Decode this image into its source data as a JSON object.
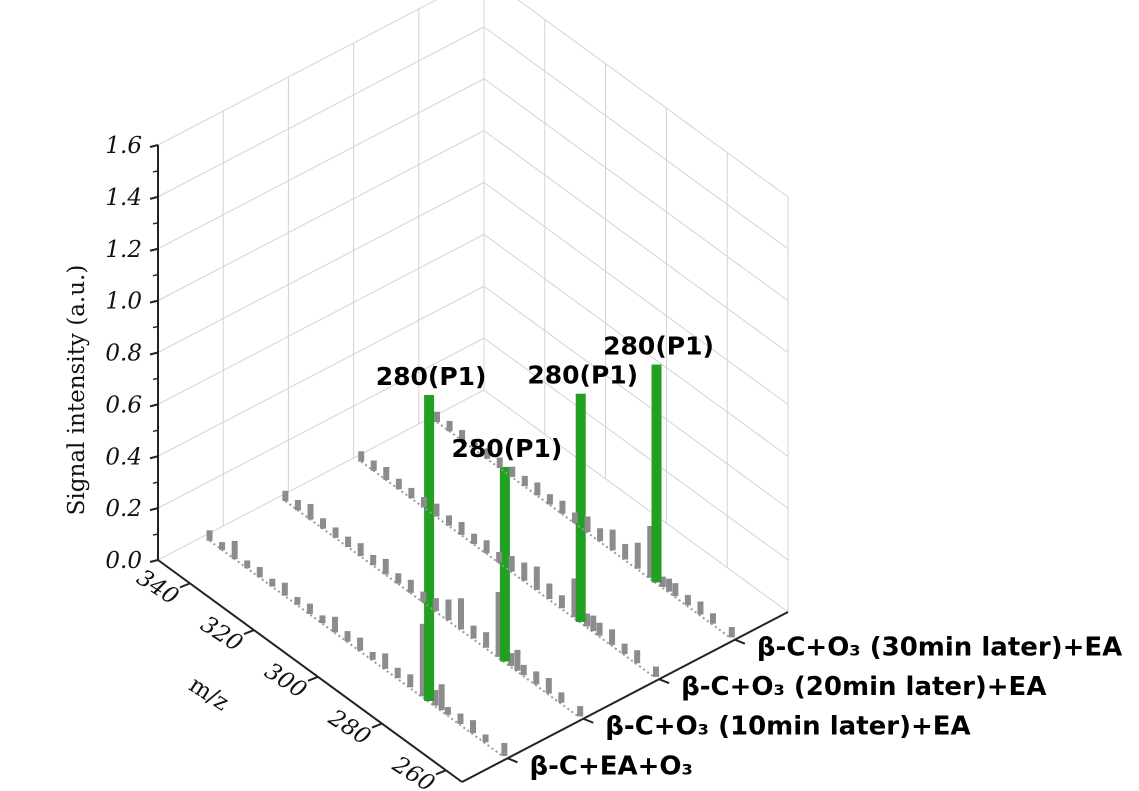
{
  "chart_data": {
    "type": "bar",
    "title": "",
    "ylabel": "Signal intensity (a.u.)",
    "xlabel": "m/z",
    "mz_range": [
      250,
      355
    ],
    "z_range": [
      0,
      1.6
    ],
    "mz_ticks": [
      "260",
      "280",
      "300",
      "320",
      "340"
    ],
    "z_ticks": [
      "0.0",
      "0.2",
      "0.4",
      "0.6",
      "0.8",
      "1.0",
      "1.2",
      "1.4",
      "1.6"
    ],
    "grid": true,
    "highlight_color": "#22a022",
    "bar_color": "#8c8c8c",
    "series": [
      {
        "name": "β-C+EA+O₃",
        "peak": {
          "mz": 280,
          "value": 1.18,
          "label": "280(P1)"
        },
        "bars": [
          [
            256,
            0.05
          ],
          [
            262,
            0.03
          ],
          [
            266,
            0.05
          ],
          [
            270,
            0.04
          ],
          [
            274,
            0.03
          ],
          [
            276,
            0.1
          ],
          [
            278,
            0.06
          ],
          [
            282,
            0.28
          ],
          [
            286,
            0.05
          ],
          [
            290,
            0.04
          ],
          [
            294,
            0.06
          ],
          [
            298,
            0.03
          ],
          [
            302,
            0.05
          ],
          [
            306,
            0.04
          ],
          [
            310,
            0.06
          ],
          [
            314,
            0.03
          ],
          [
            318,
            0.04
          ],
          [
            322,
            0.03
          ],
          [
            326,
            0.05
          ],
          [
            330,
            0.03
          ],
          [
            334,
            0.04
          ],
          [
            338,
            0.03
          ],
          [
            342,
            0.07
          ],
          [
            346,
            0.03
          ],
          [
            350,
            0.04
          ]
        ]
      },
      {
        "name": "β-C+O₃ (10min later)+EA",
        "peak": {
          "mz": 280,
          "value": 0.75,
          "label": "280(P1)"
        },
        "bars": [
          [
            256,
            0.04
          ],
          [
            262,
            0.04
          ],
          [
            266,
            0.06
          ],
          [
            270,
            0.05
          ],
          [
            274,
            0.04
          ],
          [
            276,
            0.08
          ],
          [
            278,
            0.05
          ],
          [
            282,
            0.25
          ],
          [
            286,
            0.06
          ],
          [
            290,
            0.05
          ],
          [
            294,
            0.12
          ],
          [
            298,
            0.08
          ],
          [
            302,
            0.05
          ],
          [
            306,
            0.04
          ],
          [
            310,
            0.05
          ],
          [
            314,
            0.04
          ],
          [
            318,
            0.06
          ],
          [
            322,
            0.04
          ],
          [
            326,
            0.05
          ],
          [
            330,
            0.04
          ],
          [
            334,
            0.04
          ],
          [
            338,
            0.04
          ],
          [
            342,
            0.06
          ],
          [
            346,
            0.04
          ],
          [
            350,
            0.04
          ]
        ]
      },
      {
        "name": "β-C+O₃ (20min later)+EA",
        "peak": {
          "mz": 280,
          "value": 0.88,
          "label": "280(P1)"
        },
        "bars": [
          [
            256,
            0.04
          ],
          [
            262,
            0.05
          ],
          [
            266,
            0.04
          ],
          [
            270,
            0.06
          ],
          [
            274,
            0.05
          ],
          [
            276,
            0.06
          ],
          [
            278,
            0.05
          ],
          [
            282,
            0.15
          ],
          [
            286,
            0.05
          ],
          [
            290,
            0.06
          ],
          [
            294,
            0.09
          ],
          [
            298,
            0.07
          ],
          [
            302,
            0.06
          ],
          [
            306,
            0.04
          ],
          [
            310,
            0.05
          ],
          [
            314,
            0.04
          ],
          [
            318,
            0.05
          ],
          [
            322,
            0.04
          ],
          [
            326,
            0.05
          ],
          [
            330,
            0.04
          ],
          [
            334,
            0.04
          ],
          [
            338,
            0.04
          ],
          [
            342,
            0.05
          ],
          [
            346,
            0.04
          ],
          [
            350,
            0.04
          ]
        ]
      },
      {
        "name": "β-C+O₃ (30min later)+EA",
        "peak": {
          "mz": 280,
          "value": 0.84,
          "label": "280(P1)"
        },
        "bars": [
          [
            256,
            0.04
          ],
          [
            262,
            0.04
          ],
          [
            266,
            0.05
          ],
          [
            270,
            0.04
          ],
          [
            274,
            0.05
          ],
          [
            276,
            0.05
          ],
          [
            278,
            0.04
          ],
          [
            282,
            0.2
          ],
          [
            286,
            0.1
          ],
          [
            290,
            0.06
          ],
          [
            294,
            0.08
          ],
          [
            298,
            0.05
          ],
          [
            302,
            0.06
          ],
          [
            306,
            0.04
          ],
          [
            310,
            0.05
          ],
          [
            314,
            0.04
          ],
          [
            318,
            0.05
          ],
          [
            322,
            0.04
          ],
          [
            326,
            0.04
          ],
          [
            330,
            0.04
          ],
          [
            334,
            0.04
          ],
          [
            338,
            0.04
          ],
          [
            342,
            0.04
          ],
          [
            346,
            0.04
          ],
          [
            350,
            0.04
          ]
        ]
      }
    ]
  }
}
